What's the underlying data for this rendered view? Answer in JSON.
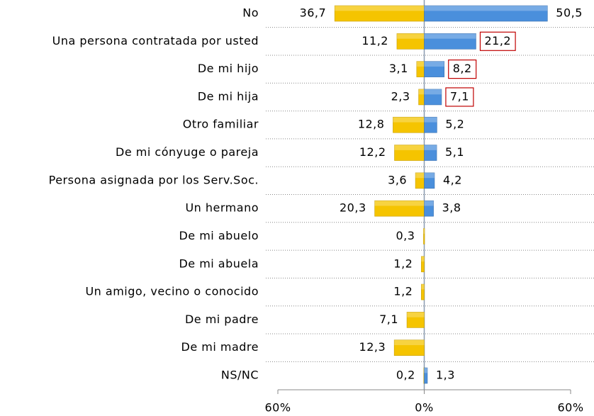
{
  "chart_data": {
    "type": "diverging_bar",
    "categories": [
      "No",
      "Una persona contratada por usted",
      "De mi hijo",
      "De mi hija",
      "Otro familiar",
      "De mi cónyuge o pareja",
      "Persona asignada por los Serv.Soc.",
      "Un hermano",
      "De mi abuelo",
      "De mi abuela",
      "Un amigo, vecino o conocido",
      "De mi padre",
      "De mi madre",
      "NS/NC"
    ],
    "series": [
      {
        "color": "#f5c400",
        "side": "left",
        "values": [
          36.7,
          11.2,
          3.1,
          2.3,
          12.8,
          12.2,
          3.6,
          20.3,
          0.3,
          1.2,
          1.2,
          7.1,
          12.3,
          0.2
        ],
        "value_labels": [
          "36,7",
          "11,2",
          "3,1",
          "2,3",
          "12,8",
          "12,2",
          "3,6",
          "20,3",
          "0,3",
          "1,2",
          "1,2",
          "7,1",
          "12,3",
          "0,2"
        ]
      },
      {
        "color": "#4a8fdc",
        "side": "right",
        "values": [
          50.5,
          21.2,
          8.2,
          7.1,
          5.2,
          5.1,
          4.2,
          3.8,
          null,
          null,
          null,
          null,
          null,
          1.3
        ],
        "value_labels": [
          "50,5",
          "21,2",
          "8,2",
          "7,1",
          "5,2",
          "5,1",
          "4,2",
          "3,8",
          null,
          null,
          null,
          null,
          null,
          "1,3"
        ],
        "boxed_labels": [
          1,
          2,
          3
        ]
      }
    ],
    "xlim": [
      -60,
      60
    ],
    "xticks": [
      {
        "value": -60,
        "label": "60%"
      },
      {
        "value": 0,
        "label": "0%"
      },
      {
        "value": 60,
        "label": "60%"
      }
    ]
  }
}
